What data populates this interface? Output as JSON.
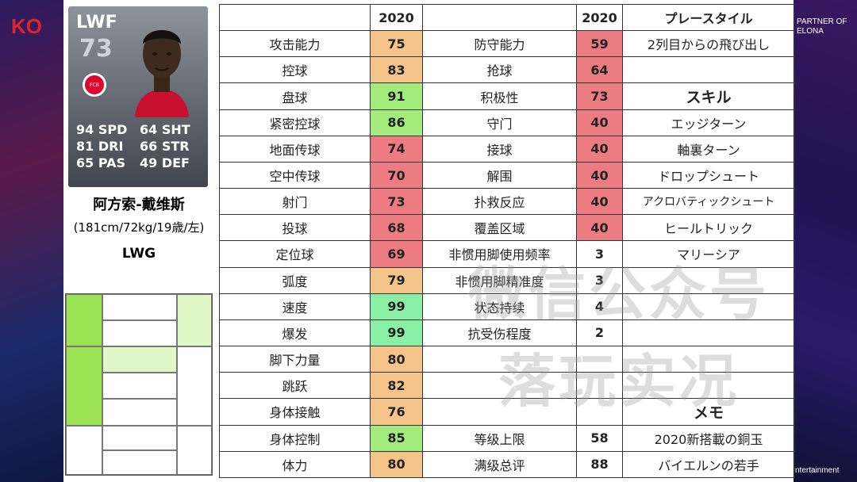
{
  "background": {
    "brand_left": "KO",
    "partner_text": "PARTNER OF\nELONA",
    "bottom_right_text": "ntertainment"
  },
  "card": {
    "position": "LWF",
    "overall": "73",
    "crest_label": "FCB",
    "stats": [
      "94 SPD",
      "64 SHT",
      "81 DRI",
      "66 STR",
      "65 PAS",
      "49 DEF"
    ]
  },
  "player": {
    "name": "阿方索-戴维斯",
    "info": "(181cm/72kg/19歳/左)",
    "position": "LWG"
  },
  "position_grid_colors": {
    "strong": "#9be353",
    "light": "#e0f7c8"
  },
  "table": {
    "header_year_1": "2020",
    "header_year_2": "2020",
    "playstyle_header": "プレースタイル",
    "skill_header": "スキル",
    "memo_header": "メモ",
    "rows": [
      {
        "label1": "攻击能力",
        "val1": "75",
        "color1": "or",
        "label2": "防守能力",
        "val2": "59",
        "color2": "rd",
        "style": "2列目からの飛び出し"
      },
      {
        "label1": "控球",
        "val1": "83",
        "color1": "or",
        "label2": "抢球",
        "val2": "64",
        "color2": "rd",
        "style": ""
      },
      {
        "label1": "盘球",
        "val1": "91",
        "color1": "gn",
        "label2": "积极性",
        "val2": "73",
        "color2": "rd",
        "style": "スキル"
      },
      {
        "label1": "紧密控球",
        "val1": "86",
        "color1": "gn",
        "label2": "守门",
        "val2": "40",
        "color2": "rd",
        "style": "エッジターン"
      },
      {
        "label1": "地面传球",
        "val1": "74",
        "color1": "rd",
        "label2": "接球",
        "val2": "40",
        "color2": "rd",
        "style": "軸裏ターン"
      },
      {
        "label1": "空中传球",
        "val1": "70",
        "color1": "rd",
        "label2": "解围",
        "val2": "40",
        "color2": "rd",
        "style": "ドロップシュート"
      },
      {
        "label1": "射门",
        "val1": "73",
        "color1": "rd",
        "label2": "扑救反应",
        "val2": "40",
        "color2": "rd",
        "style": "アクロバティックシュート"
      },
      {
        "label1": "投球",
        "val1": "68",
        "color1": "rd",
        "label2": "覆盖区域",
        "val2": "40",
        "color2": "rd",
        "style": "ヒールトリック"
      },
      {
        "label1": "定位球",
        "val1": "69",
        "color1": "rd",
        "label2": "非惯用脚使用频率",
        "val2": "3",
        "color2": "wh",
        "style": "マリーシア"
      },
      {
        "label1": "弧度",
        "val1": "79",
        "color1": "or",
        "label2": "非惯用脚精准度",
        "val2": "3",
        "color2": "wh",
        "style": ""
      },
      {
        "label1": "速度",
        "val1": "99",
        "color1": "tl",
        "label2": "状态持续",
        "val2": "4",
        "color2": "wh",
        "style": ""
      },
      {
        "label1": "爆发",
        "val1": "99",
        "color1": "tl",
        "label2": "抗受伤程度",
        "val2": "2",
        "color2": "wh",
        "style": ""
      },
      {
        "label1": "脚下力量",
        "val1": "80",
        "color1": "or",
        "label2": "",
        "val2": "",
        "color2": "wh",
        "style": ""
      },
      {
        "label1": "跳跃",
        "val1": "82",
        "color1": "or",
        "label2": "",
        "val2": "",
        "color2": "wh",
        "style": ""
      },
      {
        "label1": "身体接触",
        "val1": "76",
        "color1": "or",
        "label2": "",
        "val2": "",
        "color2": "wh",
        "style": "メモ"
      },
      {
        "label1": "身体控制",
        "val1": "85",
        "color1": "gn",
        "label2": "等级上限",
        "val2": "58",
        "color2": "wh",
        "style": "2020新搭載の銅玉"
      },
      {
        "label1": "体力",
        "val1": "80",
        "color1": "or",
        "label2": "满级总评",
        "val2": "88",
        "color2": "wh",
        "style": "バイエルンの若手"
      }
    ]
  },
  "watermark": [
    "微信公众号",
    "落玩实况"
  ]
}
